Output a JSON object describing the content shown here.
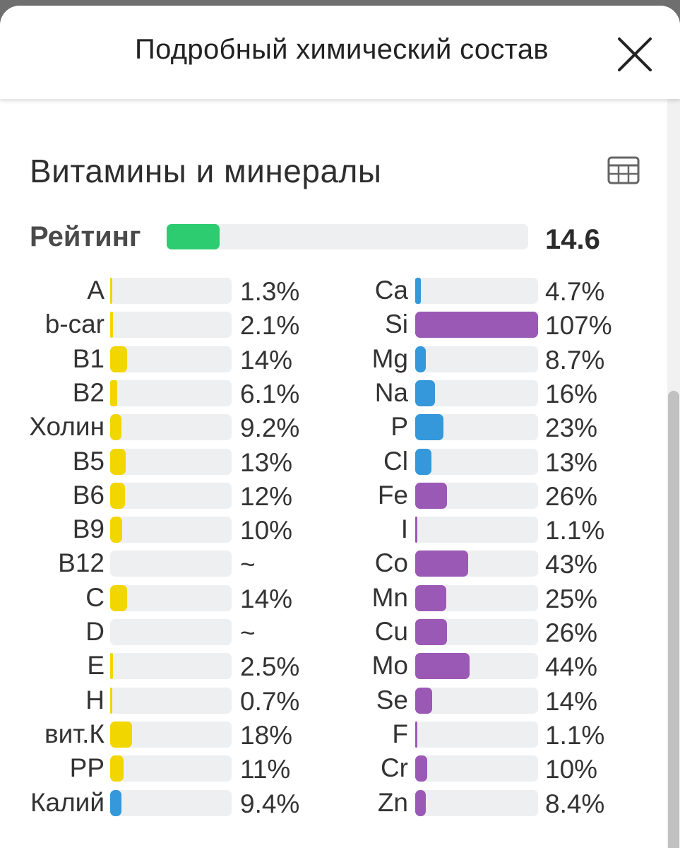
{
  "header": {
    "title": "Подробный химический состав",
    "close_icon": "close-icon"
  },
  "section": {
    "title": "Витамины и минералы",
    "table_icon": "table-icon"
  },
  "rating": {
    "label": "Рейтинг",
    "value": "14.6",
    "fill_fraction": 0.146,
    "color": "#2ecc71"
  },
  "colors": {
    "vitamin": "#f2d600",
    "macro": "#3498db",
    "micro": "#9b59b6",
    "track": "#eeeff1"
  },
  "vitamins": [
    {
      "name": "A",
      "value": "1.3%",
      "percent": 1.3,
      "color": "#f2d600"
    },
    {
      "name": "b-car",
      "value": "2.1%",
      "percent": 2.1,
      "color": "#f2d600"
    },
    {
      "name": "B1",
      "value": "14%",
      "percent": 14,
      "color": "#f2d600"
    },
    {
      "name": "B2",
      "value": "6.1%",
      "percent": 6.1,
      "color": "#f2d600"
    },
    {
      "name": "Холин",
      "value": "9.2%",
      "percent": 9.2,
      "color": "#f2d600"
    },
    {
      "name": "B5",
      "value": "13%",
      "percent": 13,
      "color": "#f2d600"
    },
    {
      "name": "B6",
      "value": "12%",
      "percent": 12,
      "color": "#f2d600"
    },
    {
      "name": "B9",
      "value": "10%",
      "percent": 10,
      "color": "#f2d600"
    },
    {
      "name": "B12",
      "value": "~",
      "percent": 0,
      "color": "#f2d600"
    },
    {
      "name": "C",
      "value": "14%",
      "percent": 14,
      "color": "#f2d600"
    },
    {
      "name": "D",
      "value": "~",
      "percent": 0,
      "color": "#f2d600"
    },
    {
      "name": "E",
      "value": "2.5%",
      "percent": 2.5,
      "color": "#f2d600"
    },
    {
      "name": "H",
      "value": "0.7%",
      "percent": 0.7,
      "color": "#f2d600"
    },
    {
      "name": "вит.К",
      "value": "18%",
      "percent": 18,
      "color": "#f2d600"
    },
    {
      "name": "PP",
      "value": "11%",
      "percent": 11,
      "color": "#f2d600"
    },
    {
      "name": "Калий",
      "value": "9.4%",
      "percent": 9.4,
      "color": "#3498db"
    }
  ],
  "minerals": [
    {
      "name": "Ca",
      "value": "4.7%",
      "percent": 4.7,
      "color": "#3498db"
    },
    {
      "name": "Si",
      "value": "107%",
      "percent": 107,
      "color": "#9b59b6"
    },
    {
      "name": "Mg",
      "value": "8.7%",
      "percent": 8.7,
      "color": "#3498db"
    },
    {
      "name": "Na",
      "value": "16%",
      "percent": 16,
      "color": "#3498db"
    },
    {
      "name": "P",
      "value": "23%",
      "percent": 23,
      "color": "#3498db"
    },
    {
      "name": "Cl",
      "value": "13%",
      "percent": 13,
      "color": "#3498db"
    },
    {
      "name": "Fe",
      "value": "26%",
      "percent": 26,
      "color": "#9b59b6"
    },
    {
      "name": "I",
      "value": "1.1%",
      "percent": 1.1,
      "color": "#9b59b6"
    },
    {
      "name": "Co",
      "value": "43%",
      "percent": 43,
      "color": "#9b59b6"
    },
    {
      "name": "Mn",
      "value": "25%",
      "percent": 25,
      "color": "#9b59b6"
    },
    {
      "name": "Cu",
      "value": "26%",
      "percent": 26,
      "color": "#9b59b6"
    },
    {
      "name": "Mo",
      "value": "44%",
      "percent": 44,
      "color": "#9b59b6"
    },
    {
      "name": "Se",
      "value": "14%",
      "percent": 14,
      "color": "#9b59b6"
    },
    {
      "name": "F",
      "value": "1.1%",
      "percent": 1.1,
      "color": "#9b59b6"
    },
    {
      "name": "Cr",
      "value": "10%",
      "percent": 10,
      "color": "#9b59b6"
    },
    {
      "name": "Zn",
      "value": "8.4%",
      "percent": 8.4,
      "color": "#9b59b6"
    }
  ]
}
